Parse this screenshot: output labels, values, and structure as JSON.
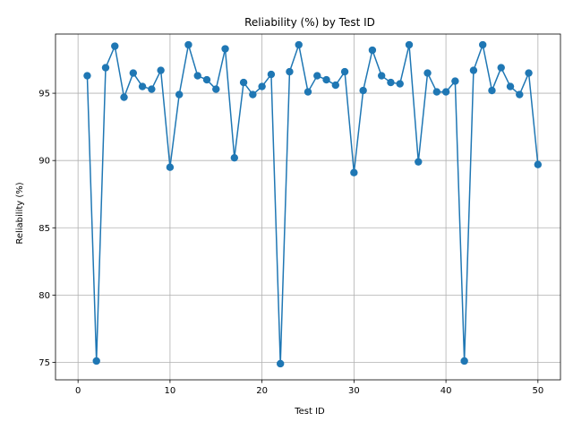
{
  "chart_data": {
    "type": "line",
    "title": "Reliability (%) by Test ID",
    "xlabel": "Test ID",
    "ylabel": "Reliability (%)",
    "xlim": [
      -2.45,
      52.45
    ],
    "ylim": [
      73.7,
      99.4
    ],
    "xticks": [
      0,
      10,
      20,
      30,
      40,
      50
    ],
    "yticks": [
      75,
      80,
      85,
      90,
      95
    ],
    "grid": true,
    "marker": "circle",
    "color": "#1f77b4",
    "series": [
      {
        "x": [
          1,
          2,
          3,
          4,
          5,
          6,
          7,
          8,
          9,
          10,
          11,
          12,
          13,
          14,
          15,
          16,
          17,
          18,
          19,
          20,
          21,
          22,
          23,
          24,
          25,
          26,
          27,
          28,
          29,
          30,
          31,
          32,
          33,
          34,
          35,
          36,
          37,
          38,
          39,
          40,
          41,
          42,
          43,
          44,
          45,
          46,
          47,
          48,
          49,
          50
        ],
        "values": [
          96.3,
          75.1,
          96.9,
          98.5,
          94.7,
          96.5,
          95.5,
          95.3,
          96.7,
          89.5,
          94.9,
          98.6,
          96.3,
          96.0,
          95.3,
          98.3,
          90.2,
          95.8,
          94.9,
          95.5,
          96.4,
          74.9,
          96.6,
          98.6,
          95.1,
          96.3,
          96.0,
          95.6,
          96.6,
          89.1,
          95.2,
          98.2,
          96.3,
          95.8,
          95.7,
          98.6,
          89.9,
          96.5,
          95.1,
          95.1,
          95.9,
          75.1,
          96.7,
          98.6,
          95.2,
          96.9,
          95.5,
          94.9,
          96.5,
          89.7
        ]
      }
    ]
  }
}
